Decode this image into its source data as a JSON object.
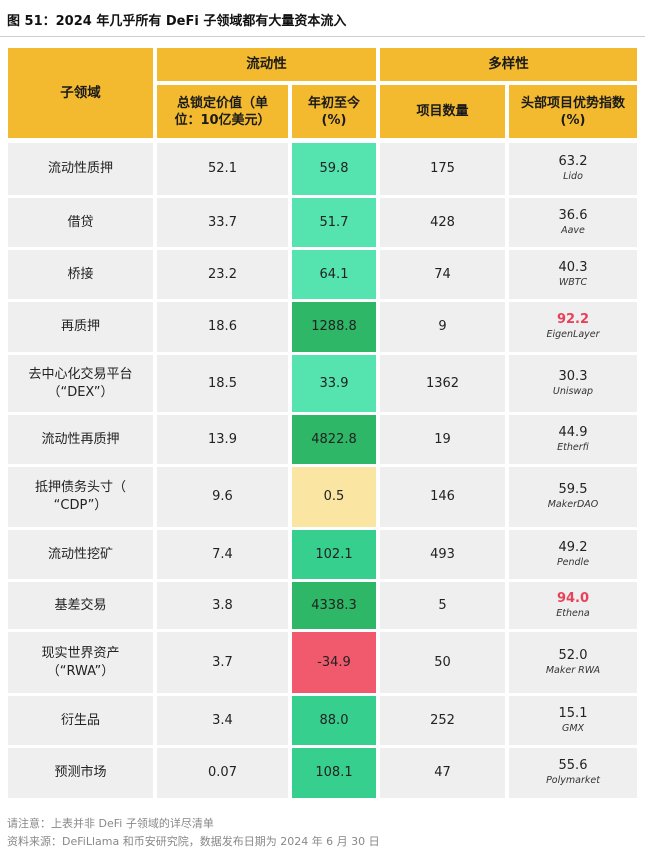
{
  "title": "图 51：2024 年几乎所有 DeFi 子领域都有大量资本流入",
  "headers": {
    "sector": "子领域",
    "liquidity": "流动性",
    "diversity": "多样性",
    "tvl": "总锁定价值（单位：10亿美元）",
    "ytd": "年初至今 (%)",
    "projects": "项目数量",
    "dominance": "头部项目优势指数 (%)"
  },
  "rows": [
    {
      "name": "流动性质押",
      "tvl": "52.1",
      "ytd": "59.8",
      "ytd_color": "light",
      "projects": "175",
      "dom": "63.2",
      "dom_highlight": false,
      "leader": "Lido"
    },
    {
      "name": "借贷",
      "tvl": "33.7",
      "ytd": "51.7",
      "ytd_color": "light",
      "projects": "428",
      "dom": "36.6",
      "dom_highlight": false,
      "leader": "Aave"
    },
    {
      "name": "桥接",
      "tvl": "23.2",
      "ytd": "64.1",
      "ytd_color": "light",
      "projects": "74",
      "dom": "40.3",
      "dom_highlight": false,
      "leader": "WBTC"
    },
    {
      "name": "再质押",
      "tvl": "18.6",
      "ytd": "1288.8",
      "ytd_color": "dark",
      "projects": "9",
      "dom": "92.2",
      "dom_highlight": true,
      "leader": "EigenLayer"
    },
    {
      "name": "去中心化交易平台（“DEX”）",
      "tvl": "18.5",
      "ytd": "33.9",
      "ytd_color": "light",
      "projects": "1362",
      "dom": "30.3",
      "dom_highlight": false,
      "leader": "Uniswap"
    },
    {
      "name": "流动性再质押",
      "tvl": "13.9",
      "ytd": "4822.8",
      "ytd_color": "dark",
      "projects": "19",
      "dom": "44.9",
      "dom_highlight": false,
      "leader": "Etherfi"
    },
    {
      "name": "抵押债务头寸（ “CDP”）",
      "tvl": "9.6",
      "ytd": "0.5",
      "ytd_color": "yellow",
      "projects": "146",
      "dom": "59.5",
      "dom_highlight": false,
      "leader": "MakerDAO"
    },
    {
      "name": "流动性挖矿",
      "tvl": "7.4",
      "ytd": "102.1",
      "ytd_color": "mid",
      "projects": "493",
      "dom": "49.2",
      "dom_highlight": false,
      "leader": "Pendle"
    },
    {
      "name": "基差交易",
      "tvl": "3.8",
      "ytd": "4338.3",
      "ytd_color": "dark",
      "projects": "5",
      "dom": "94.0",
      "dom_highlight": true,
      "leader": "Ethena"
    },
    {
      "name": "现实世界资产（“RWA”）",
      "tvl": "3.7",
      "ytd": "-34.9",
      "ytd_color": "red",
      "projects": "50",
      "dom": "52.0",
      "dom_highlight": false,
      "leader": "Maker RWA"
    },
    {
      "name": "衍生品",
      "tvl": "3.4",
      "ytd": "88.0",
      "ytd_color": "mid",
      "projects": "252",
      "dom": "15.1",
      "dom_highlight": false,
      "leader": "GMX"
    },
    {
      "name": "预测市场",
      "tvl": "0.07",
      "ytd": "108.1",
      "ytd_color": "mid",
      "projects": "47",
      "dom": "55.6",
      "dom_highlight": false,
      "leader": "Polymarket"
    }
  ],
  "notes": {
    "note": "请注意：上表并非 DeFi 子领域的详尽清单",
    "source": "资料来源：DeFiLlama 和币安研究院，数据发布日期为 2024 年 6 月 30 日"
  }
}
